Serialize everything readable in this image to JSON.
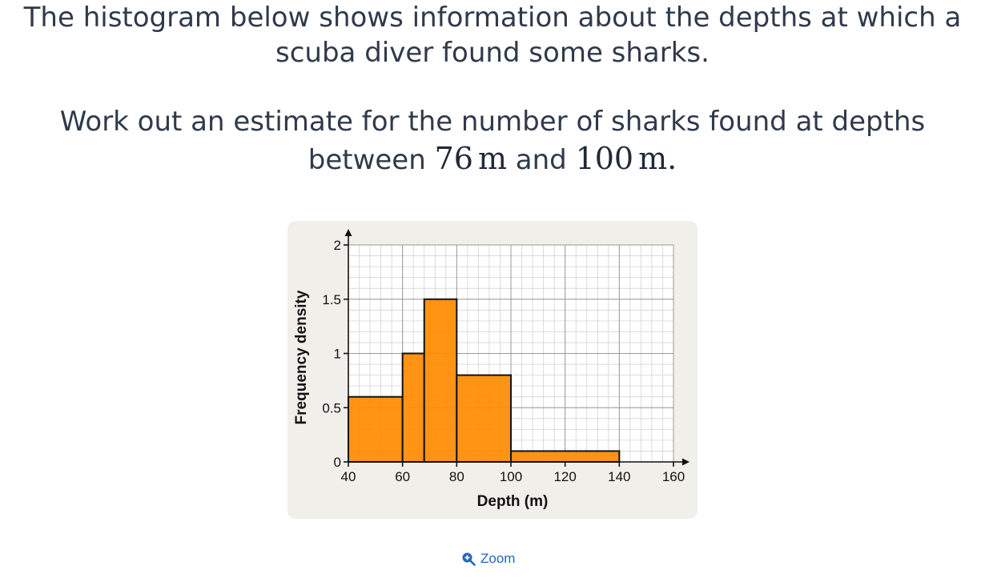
{
  "question": {
    "line1": "The histogram below shows information about the depths at which a",
    "line2": "scuba diver found some sharks.",
    "line3": "Work out an estimate for the number of sharks found at depths",
    "line4_prefix": "between ",
    "value_low": "76",
    "unit_low": "m",
    "line4_middle": " and ",
    "value_high": "100",
    "unit_high": "m",
    "line4_suffix": "."
  },
  "zoom": {
    "label": "Zoom",
    "icon": "zoom-in-icon"
  },
  "colors": {
    "bar_fill": "#ff8a00",
    "bar_stroke": "#111111",
    "card_background": "#f1efea",
    "grid_major": "#9a9a9a",
    "grid_minor": "#d4d4d4",
    "link_blue": "#2563c9"
  },
  "chart_data": {
    "type": "bar",
    "subtype": "histogram",
    "xlabel": "Depth (m)",
    "ylabel": "Frequency density",
    "xlim": [
      40,
      160
    ],
    "ylim": [
      0,
      2
    ],
    "x_ticks": [
      40,
      60,
      80,
      100,
      120,
      140,
      160
    ],
    "x_tick_labels": [
      "40",
      "60",
      "80",
      "100",
      "120",
      "140",
      "160"
    ],
    "y_ticks": [
      0,
      0.5,
      1,
      1.5,
      2
    ],
    "y_tick_labels": [
      "0",
      "0.5",
      "1",
      "1.5",
      "2"
    ],
    "x_minor_step": 4,
    "y_minor_step": 0.1,
    "grid": true,
    "bins": [
      {
        "start": 40,
        "end": 60,
        "frequency_density": 0.6
      },
      {
        "start": 60,
        "end": 68,
        "frequency_density": 1.0
      },
      {
        "start": 68,
        "end": 80,
        "frequency_density": 1.5
      },
      {
        "start": 80,
        "end": 100,
        "frequency_density": 0.8
      },
      {
        "start": 100,
        "end": 140,
        "frequency_density": 0.1
      }
    ]
  }
}
